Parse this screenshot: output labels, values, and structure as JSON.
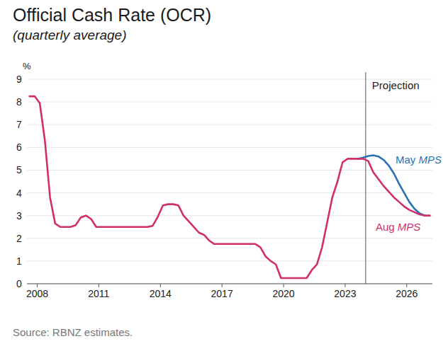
{
  "chart_data": {
    "type": "line",
    "title": "Official Cash Rate (OCR)",
    "subtitle": "(quarterly average)",
    "y_label": "%",
    "source": "Source: RBNZ estimates.",
    "x": [
      2007.625,
      2007.875,
      2008.125,
      2008.375,
      2008.625,
      2008.875,
      2009.125,
      2009.375,
      2009.625,
      2009.875,
      2010.125,
      2010.375,
      2010.625,
      2010.875,
      2011.125,
      2011.375,
      2011.625,
      2011.875,
      2012.125,
      2012.375,
      2012.625,
      2012.875,
      2013.125,
      2013.375,
      2013.625,
      2013.875,
      2014.125,
      2014.375,
      2014.625,
      2014.875,
      2015.125,
      2015.375,
      2015.625,
      2015.875,
      2016.125,
      2016.375,
      2016.625,
      2016.875,
      2017.125,
      2017.375,
      2017.625,
      2017.875,
      2018.125,
      2018.375,
      2018.625,
      2018.875,
      2019.125,
      2019.375,
      2019.625,
      2019.875,
      2020.125,
      2020.375,
      2020.625,
      2020.875,
      2021.125,
      2021.375,
      2021.625,
      2021.875,
      2022.125,
      2022.375,
      2022.625,
      2022.875,
      2023.125,
      2023.375,
      2023.625,
      2023.875,
      2024.125,
      2024.375,
      2024.625,
      2024.875,
      2025.125,
      2025.375,
      2025.625,
      2025.875,
      2026.125,
      2026.375,
      2026.625,
      2026.875,
      2027.125
    ],
    "series": [
      {
        "name": "May MPS",
        "color": "#2a72b5",
        "values": [
          null,
          null,
          null,
          null,
          null,
          null,
          null,
          null,
          null,
          null,
          null,
          null,
          null,
          null,
          null,
          null,
          null,
          null,
          null,
          null,
          null,
          null,
          null,
          null,
          null,
          null,
          null,
          null,
          null,
          null,
          null,
          null,
          null,
          null,
          null,
          null,
          null,
          null,
          null,
          null,
          null,
          null,
          null,
          null,
          null,
          null,
          null,
          null,
          null,
          null,
          null,
          null,
          null,
          null,
          null,
          null,
          null,
          null,
          null,
          null,
          null,
          null,
          null,
          null,
          5.5,
          5.55,
          5.62,
          5.65,
          5.6,
          5.45,
          5.2,
          4.85,
          4.4,
          4.0,
          3.6,
          3.3,
          3.1,
          3.0,
          null
        ]
      },
      {
        "name": "Aug MPS",
        "color": "#d02f6c",
        "values": [
          8.25,
          8.25,
          7.95,
          6.3,
          3.8,
          2.65,
          2.5,
          2.5,
          2.5,
          2.58,
          2.92,
          3.0,
          2.85,
          2.5,
          2.5,
          2.5,
          2.5,
          2.5,
          2.5,
          2.5,
          2.5,
          2.5,
          2.5,
          2.5,
          2.55,
          2.95,
          3.45,
          3.5,
          3.5,
          3.45,
          3.0,
          2.75,
          2.5,
          2.25,
          2.15,
          1.9,
          1.75,
          1.75,
          1.75,
          1.75,
          1.75,
          1.75,
          1.75,
          1.75,
          1.75,
          1.6,
          1.2,
          1.0,
          0.85,
          0.25,
          0.25,
          0.25,
          0.25,
          0.25,
          0.25,
          0.6,
          0.85,
          1.6,
          2.7,
          3.8,
          4.5,
          5.35,
          5.5,
          5.5,
          5.5,
          5.5,
          5.4,
          4.9,
          4.6,
          4.3,
          4.05,
          3.8,
          3.6,
          3.4,
          3.25,
          3.15,
          3.05,
          3.0,
          3.0
        ]
      }
    ],
    "xlim": [
      2007.5,
      2027.25
    ],
    "ylim": [
      0,
      9
    ],
    "xticks": [
      2008,
      2011,
      2014,
      2017,
      2020,
      2023,
      2026
    ],
    "yticks": [
      0,
      1,
      2,
      3,
      4,
      5,
      6,
      7,
      8,
      9
    ],
    "grid": true,
    "annotations": [
      {
        "text": "Projection",
        "x": 2024
      }
    ]
  }
}
